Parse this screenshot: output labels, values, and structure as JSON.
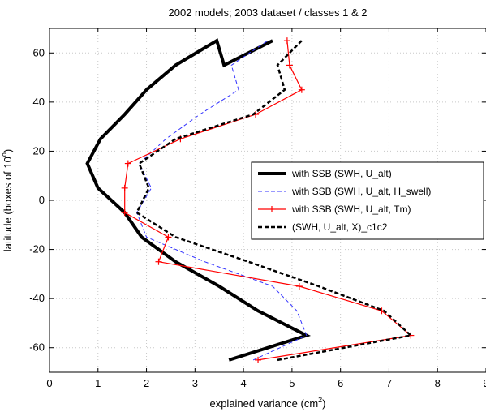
{
  "chart_data": {
    "type": "line",
    "title": "2002 models; 2003 dataset / classes 1 & 2",
    "xlabel": "explained variance (cm²)",
    "ylabel": "latitude (boxes of 10°)",
    "xlim": [
      0,
      9
    ],
    "ylim": [
      -70,
      70
    ],
    "xticks": [
      "0",
      "1",
      "2",
      "3",
      "4",
      "5",
      "6",
      "7",
      "8",
      "9"
    ],
    "yticks": [
      "-60",
      "-40",
      "-20",
      "0",
      "20",
      "40",
      "60"
    ],
    "grid": true,
    "legend_position": "right",
    "series": [
      {
        "name": "with SSB (SWH, U_alt)",
        "color": "#000000",
        "style": "solid-thick",
        "x": [
          3.7,
          5.3,
          4.3,
          3.5,
          2.6,
          1.9,
          1.55,
          1.0,
          0.78,
          1.05,
          1.55,
          2.0,
          2.6,
          3.45,
          3.6,
          4.6
        ],
        "y": [
          -65,
          -55,
          -45,
          -35,
          -25,
          -15,
          -5,
          5,
          15,
          25,
          35,
          45,
          55,
          65,
          55,
          65
        ]
      },
      {
        "name": "with SSB (SWH, U_alt, H_swell)",
        "color": "#3333ff",
        "style": "dashed",
        "x": [
          4.2,
          5.3,
          5.1,
          4.6,
          3.2,
          2.0,
          1.8,
          2.1,
          1.85,
          2.4,
          3.1,
          3.9,
          3.75,
          4.5
        ],
        "y": [
          -65,
          -55,
          -45,
          -35,
          -25,
          -15,
          -5,
          5,
          15,
          25,
          35,
          45,
          55,
          65
        ]
      },
      {
        "name": "with SSB (SWH, U_alt, Tm)",
        "color": "#ff0000",
        "style": "solid-marker",
        "x": [
          4.3,
          7.45,
          6.85,
          5.15,
          2.25,
          2.45,
          1.55,
          1.55,
          1.62,
          2.7,
          4.25,
          5.2,
          4.95,
          4.9
        ],
        "y": [
          -65,
          -55,
          -45,
          -35,
          -25,
          -15,
          -5,
          5,
          15,
          25,
          35,
          45,
          55,
          65
        ]
      },
      {
        "name": "(SWH, U_alt, X)_c1c2",
        "color": "#000000",
        "style": "dashed-thick",
        "x": [
          4.7,
          7.45,
          6.9,
          5.55,
          4.1,
          2.6,
          1.8,
          2.05,
          1.85,
          2.6,
          4.2,
          4.85,
          4.7,
          5.2
        ],
        "y": [
          -65,
          -55,
          -45,
          -35,
          -25,
          -15,
          -5,
          5,
          15,
          25,
          35,
          45,
          55,
          65
        ]
      }
    ]
  }
}
